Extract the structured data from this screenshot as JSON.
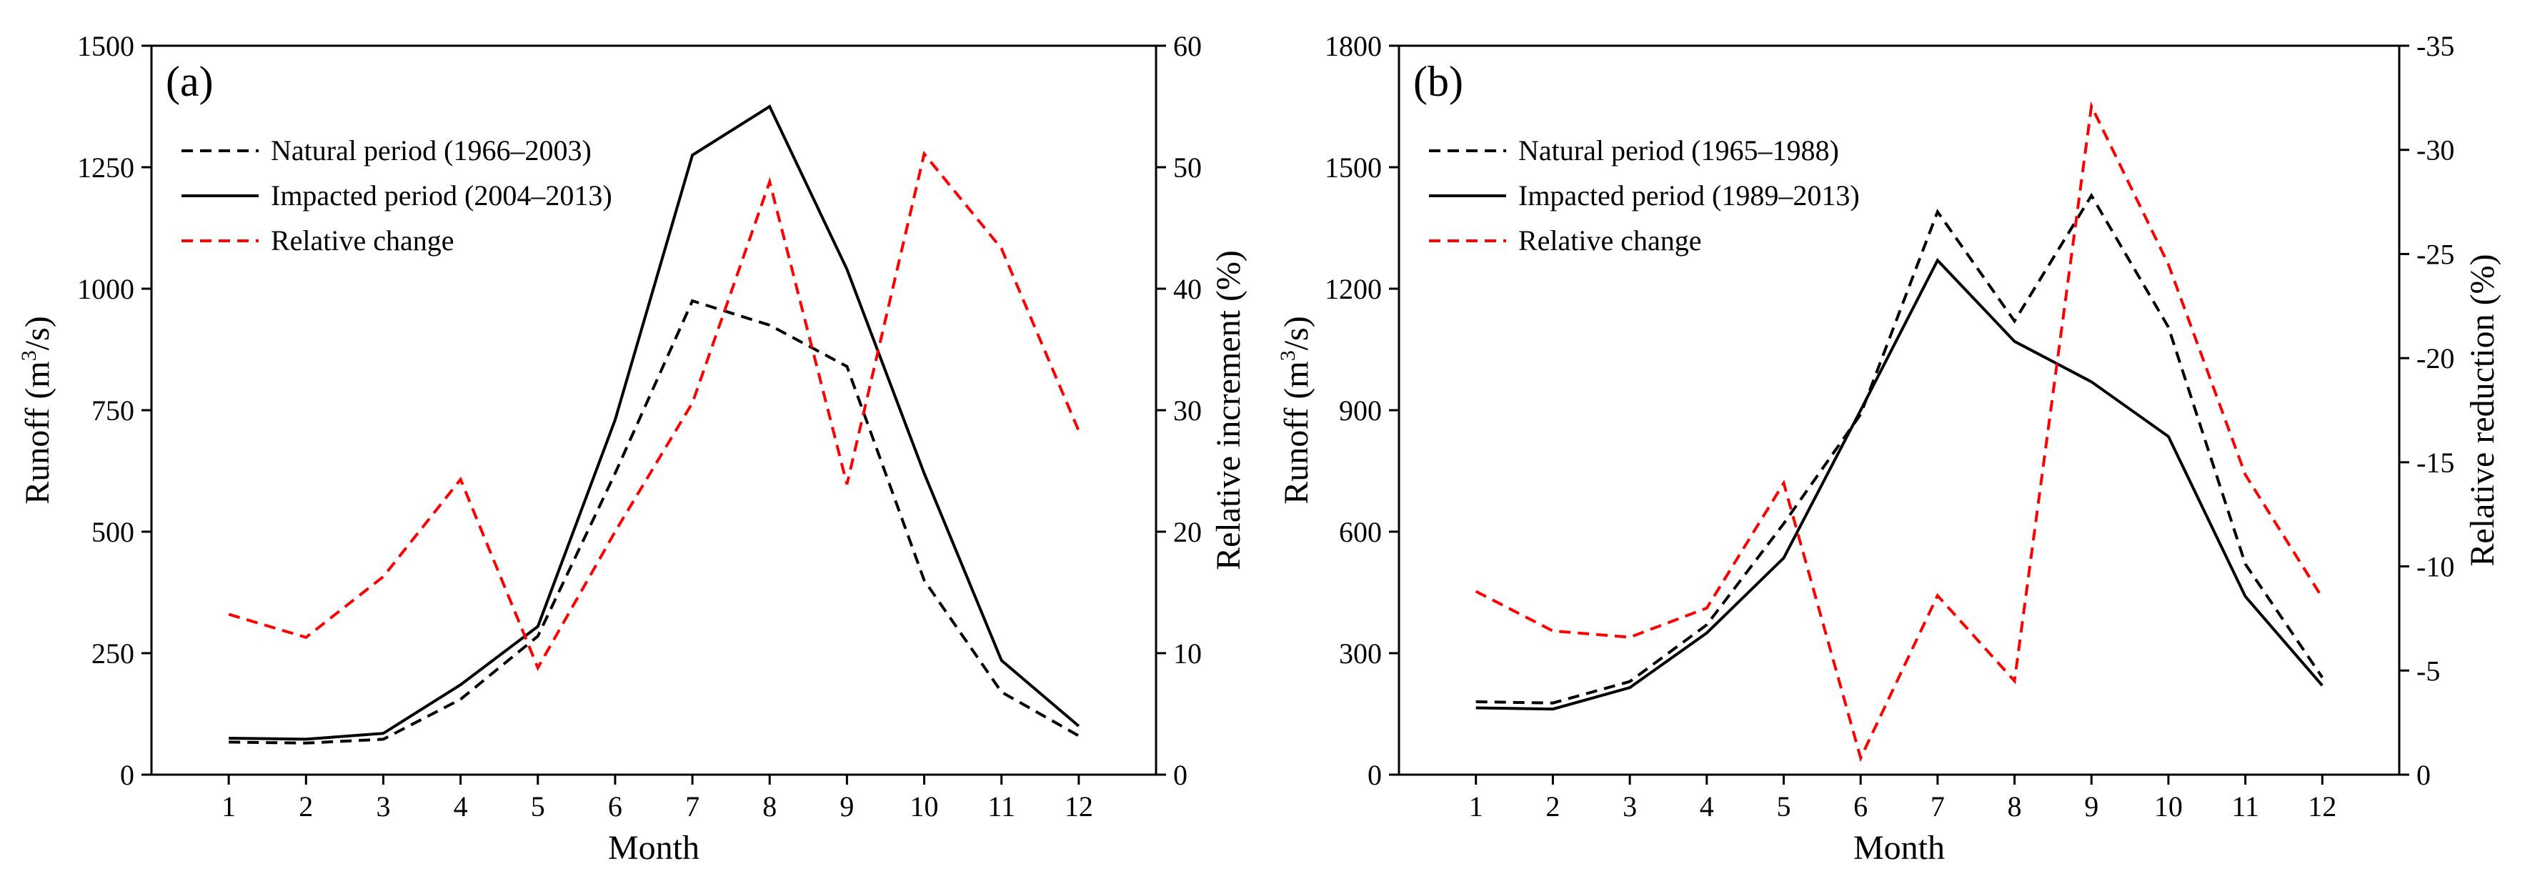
{
  "figure": {
    "description_label": "Two-panel monthly runoff comparison"
  },
  "chart_data": [
    {
      "type": "line",
      "panel_label": "(a)",
      "xlabel": "Month",
      "ylabel_left": {
        "pre": "Runoff (m",
        "sup": "3",
        "post": "/s)"
      },
      "ylabel_right": "Relative increment (%)",
      "categories": [
        1,
        2,
        3,
        4,
        5,
        6,
        7,
        8,
        9,
        10,
        11,
        12
      ],
      "xticks": [
        "1",
        "2",
        "3",
        "4",
        "5",
        "6",
        "7",
        "8",
        "9",
        "10",
        "11",
        "12"
      ],
      "ylim_left": [
        0,
        1500
      ],
      "yticks_left": [
        0,
        250,
        500,
        750,
        1000,
        1250,
        1500
      ],
      "ylim_right": [
        0,
        60
      ],
      "yticks_right": [
        0,
        10,
        20,
        30,
        40,
        50,
        60
      ],
      "right_axis_inverted": false,
      "series": [
        {
          "name": "Natural period (1966–2003)",
          "axis": "left",
          "color": "#000000",
          "dash": "dashed",
          "values": [
            67,
            65,
            73,
            155,
            285,
            620,
            975,
            925,
            840,
            400,
            170,
            80
          ]
        },
        {
          "name": "Impacted period (2004–2013)",
          "axis": "left",
          "color": "#000000",
          "dash": "solid",
          "values": [
            75,
            73,
            85,
            185,
            305,
            730,
            1275,
            1375,
            1040,
            620,
            235,
            100
          ]
        },
        {
          "name": "Relative change",
          "axis": "right",
          "color": "#ff0000",
          "dash": "dashed",
          "values": [
            13.2,
            11.3,
            16.3,
            24.3,
            8.8,
            20.0,
            30.6,
            48.8,
            23.9,
            51.1,
            43.3,
            28.3
          ]
        }
      ]
    },
    {
      "type": "line",
      "panel_label": "(b)",
      "xlabel": "Month",
      "ylabel_left": {
        "pre": "Runoff (m",
        "sup": "3",
        "post": "/s)"
      },
      "ylabel_right": "Relative reduction (%)",
      "categories": [
        1,
        2,
        3,
        4,
        5,
        6,
        7,
        8,
        9,
        10,
        11,
        12
      ],
      "xticks": [
        "1",
        "2",
        "3",
        "4",
        "5",
        "6",
        "7",
        "8",
        "9",
        "10",
        "11",
        "12"
      ],
      "ylim_left": [
        0,
        1800
      ],
      "yticks_left": [
        0,
        300,
        600,
        900,
        1200,
        1500,
        1800
      ],
      "ylim_right": [
        0,
        -35
      ],
      "yticks_right": [
        0,
        -5,
        -10,
        -15,
        -20,
        -25,
        -30,
        -35
      ],
      "right_axis_inverted": true,
      "series": [
        {
          "name": "Natural period (1965–1988)",
          "axis": "left",
          "color": "#000000",
          "dash": "dashed",
          "values": [
            180,
            177,
            230,
            370,
            620,
            890,
            1390,
            1120,
            1430,
            1105,
            520,
            240
          ]
        },
        {
          "name": "Impacted period (1989–2013)",
          "axis": "left",
          "color": "#000000",
          "dash": "solid",
          "values": [
            165,
            162,
            215,
            350,
            535,
            900,
            1270,
            1070,
            970,
            835,
            440,
            220
          ]
        },
        {
          "name": "Relative change",
          "axis": "right",
          "color": "#ff0000",
          "dash": "dashed",
          "values": [
            -8.8,
            -6.9,
            -6.6,
            -8.0,
            -14.0,
            -0.8,
            -8.6,
            -4.5,
            -32.1,
            -24.5,
            -14.4,
            -8.5
          ]
        }
      ]
    }
  ]
}
